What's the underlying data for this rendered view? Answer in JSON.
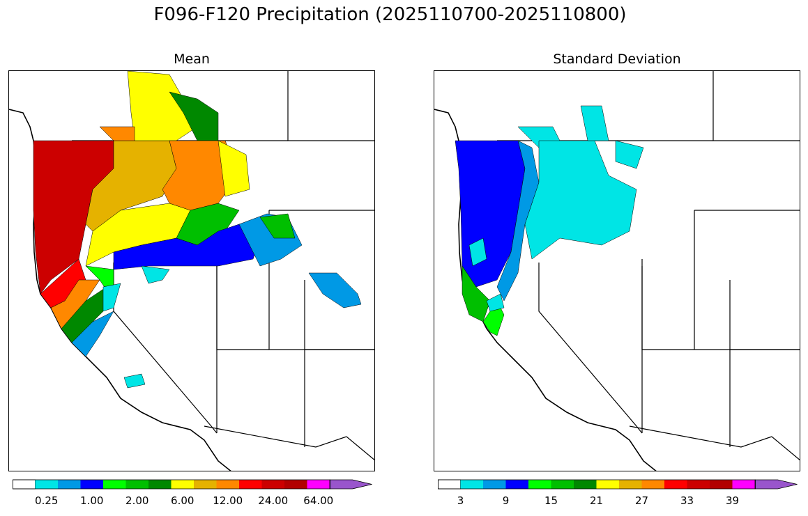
{
  "title": "F096-F120 Precipitation (2025110700-2025110800)",
  "panels": [
    {
      "title": "Mean"
    },
    {
      "title": "Standard Deviation"
    }
  ],
  "palette": [
    "#ffffff",
    "#00e5e5",
    "#0099e5",
    "#0000ff",
    "#00ff00",
    "#00bf00",
    "#008800",
    "#ffff00",
    "#e5b200",
    "#ff8800",
    "#ff0000",
    "#cc0000",
    "#b20000",
    "#ff00ff",
    "#9955cc"
  ],
  "colorbars": [
    {
      "name": "mean",
      "tick_labels": [
        "0.25",
        "1.00",
        "2.00",
        "6.00",
        "12.00",
        "24.00",
        "64.00"
      ]
    },
    {
      "name": "stddev",
      "tick_labels": [
        "3",
        "9",
        "15",
        "21",
        "27",
        "33",
        "39"
      ]
    }
  ]
}
